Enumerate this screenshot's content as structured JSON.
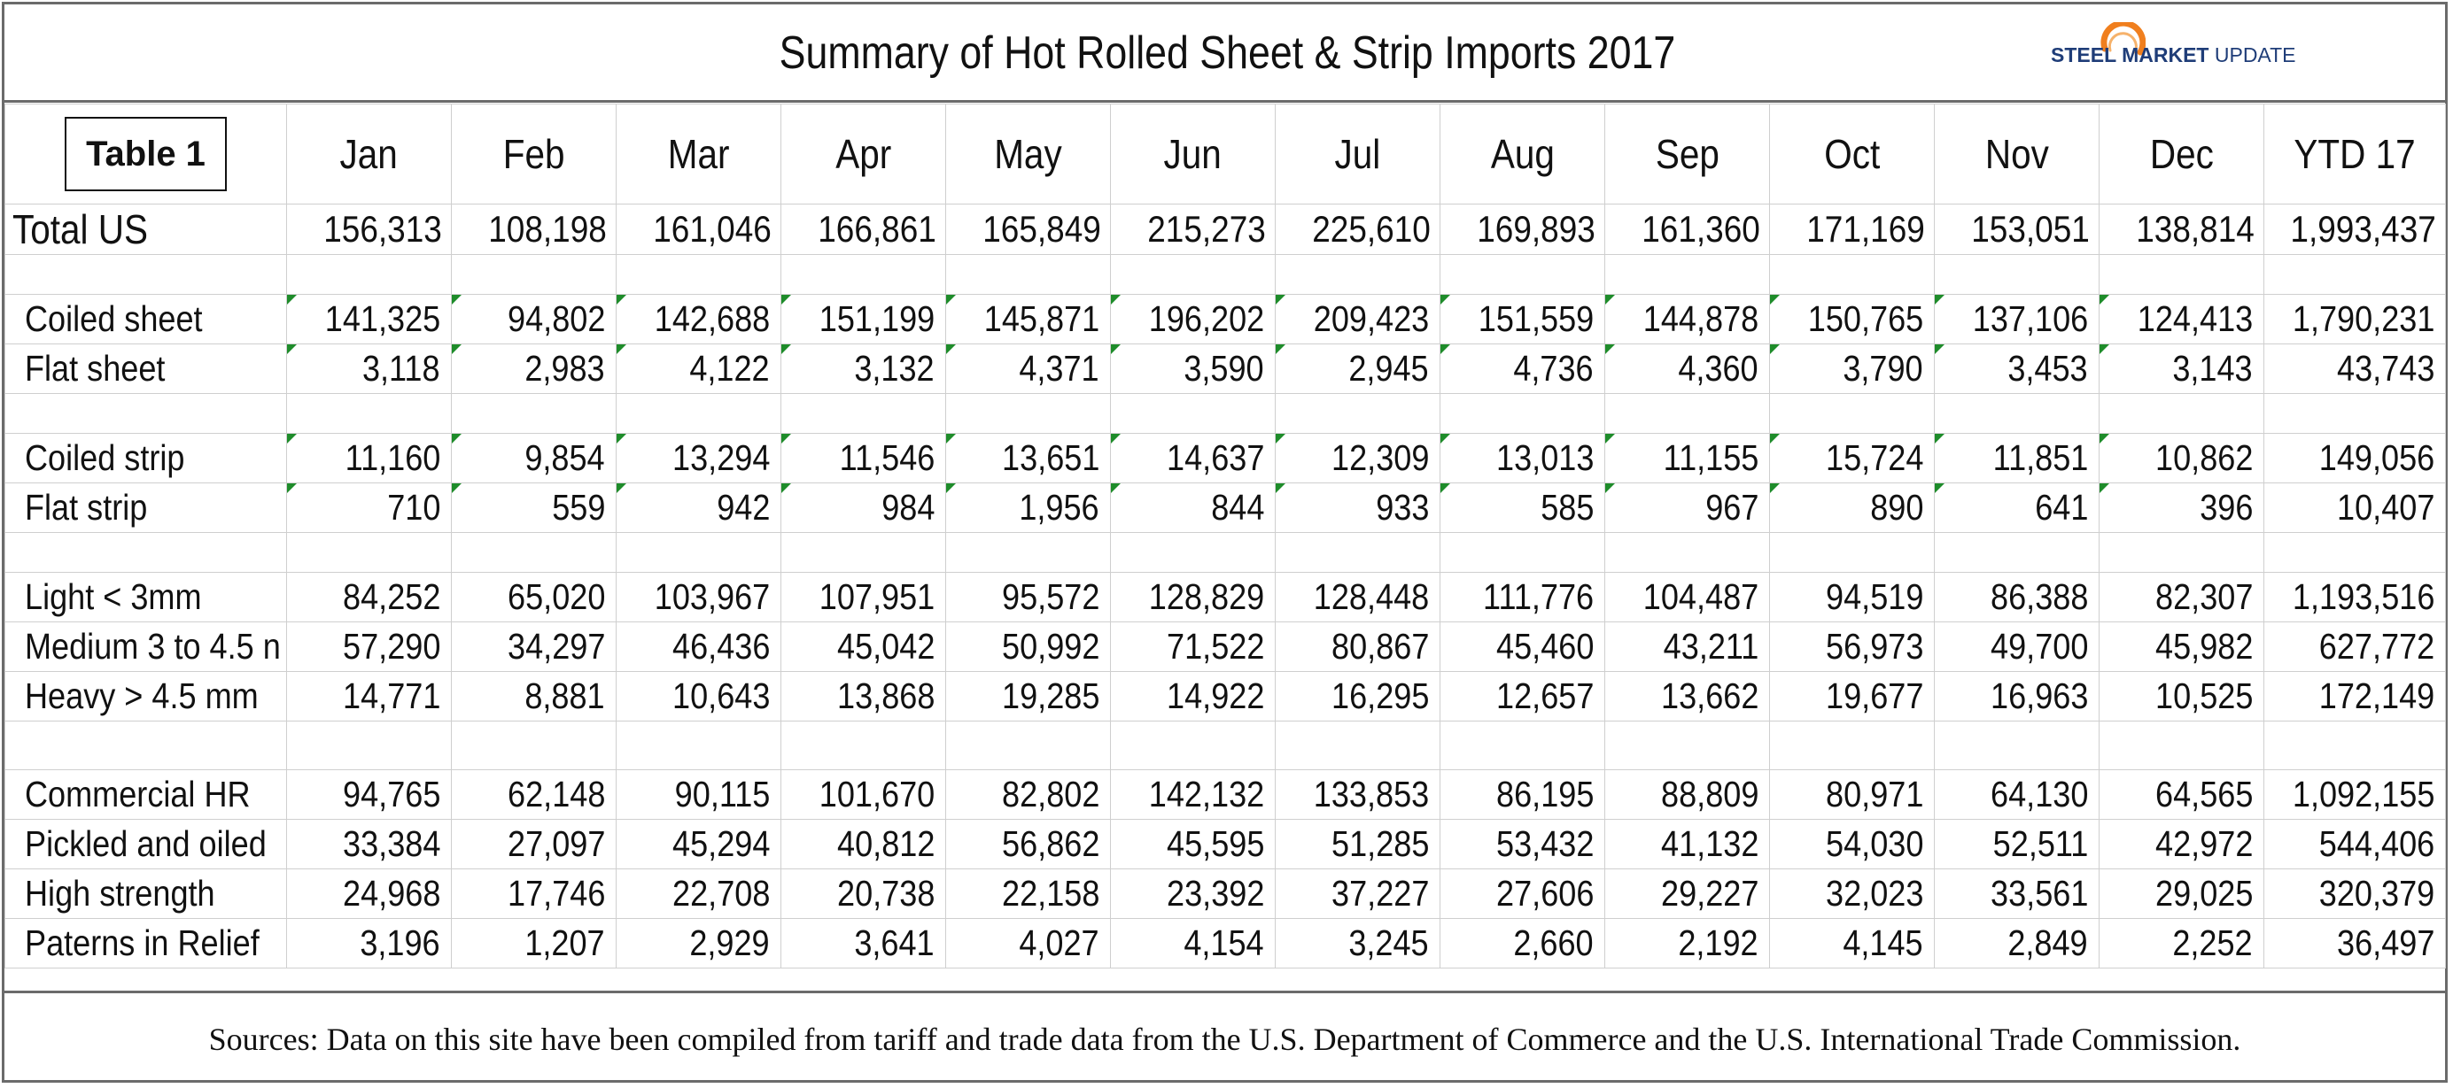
{
  "title": "Summary of Hot Rolled Sheet & Strip Imports 2017",
  "logo": {
    "bold": "STEEL MARKET",
    "light": " UPDATE",
    "icon": "orange-arc-icon"
  },
  "table_label": "Table 1",
  "columns": [
    "Jan",
    "Feb",
    "Mar",
    "Apr",
    "May",
    "Jun",
    "Jul",
    "Aug",
    "Sep",
    "Oct",
    "Nov",
    "Dec",
    "YTD 17"
  ],
  "total": {
    "label": "Total US",
    "values": [
      "156,313",
      "108,198",
      "161,046",
      "166,861",
      "165,849",
      "215,273",
      "225,610",
      "169,893",
      "161,360",
      "171,169",
      "153,051",
      "138,814",
      "1,993,437"
    ]
  },
  "groups": [
    {
      "rows": [
        {
          "label": "Coiled sheet",
          "values": [
            "141,325",
            "94,802",
            "142,688",
            "151,199",
            "145,871",
            "196,202",
            "209,423",
            "151,559",
            "144,878",
            "150,765",
            "137,106",
            "124,413",
            "1,790,231"
          ]
        },
        {
          "label": "Flat sheet",
          "values": [
            "3,118",
            "2,983",
            "4,122",
            "3,132",
            "4,371",
            "3,590",
            "2,945",
            "4,736",
            "4,360",
            "3,790",
            "3,453",
            "3,143",
            "43,743"
          ]
        }
      ]
    },
    {
      "rows": [
        {
          "label": "Coiled strip",
          "values": [
            "11,160",
            "9,854",
            "13,294",
            "11,546",
            "13,651",
            "14,637",
            "12,309",
            "13,013",
            "11,155",
            "15,724",
            "11,851",
            "10,862",
            "149,056"
          ]
        },
        {
          "label": "Flat strip",
          "values": [
            "710",
            "559",
            "942",
            "984",
            "1,956",
            "844",
            "933",
            "585",
            "967",
            "890",
            "641",
            "396",
            "10,407"
          ]
        }
      ]
    },
    {
      "rows": [
        {
          "label": "Light < 3mm",
          "values": [
            "84,252",
            "65,020",
            "103,967",
            "107,951",
            "95,572",
            "128,829",
            "128,448",
            "111,776",
            "104,487",
            "94,519",
            "86,388",
            "82,307",
            "1,193,516"
          ]
        },
        {
          "label": "Medium 3 to 4.5 n",
          "values": [
            "57,290",
            "34,297",
            "46,436",
            "45,042",
            "50,992",
            "71,522",
            "80,867",
            "45,460",
            "43,211",
            "56,973",
            "49,700",
            "45,982",
            "627,772"
          ]
        },
        {
          "label": "Heavy > 4.5 mm",
          "values": [
            "14,771",
            "8,881",
            "10,643",
            "13,868",
            "19,285",
            "14,922",
            "16,295",
            "12,657",
            "13,662",
            "19,677",
            "16,963",
            "10,525",
            "172,149"
          ]
        }
      ]
    },
    {
      "rows": [
        {
          "label": "Commercial HR",
          "values": [
            "94,765",
            "62,148",
            "90,115",
            "101,670",
            "82,802",
            "142,132",
            "133,853",
            "86,195",
            "88,809",
            "80,971",
            "64,130",
            "64,565",
            "1,092,155"
          ]
        },
        {
          "label": "Pickled and oiled",
          "values": [
            "33,384",
            "27,097",
            "45,294",
            "40,812",
            "56,862",
            "45,595",
            "51,285",
            "53,432",
            "41,132",
            "54,030",
            "52,511",
            "42,972",
            "544,406"
          ]
        },
        {
          "label": "High strength",
          "values": [
            "24,968",
            "17,746",
            "22,708",
            "20,738",
            "22,158",
            "23,392",
            "37,227",
            "27,606",
            "29,227",
            "32,023",
            "33,561",
            "29,025",
            "320,379"
          ]
        },
        {
          "label": "Paterns in Relief",
          "values": [
            "3,196",
            "1,207",
            "2,929",
            "3,641",
            "4,027",
            "4,154",
            "3,245",
            "2,660",
            "2,192",
            "4,145",
            "2,849",
            "2,252",
            "36,497"
          ]
        }
      ]
    }
  ],
  "source": "Sources: Data on this site have been compiled from tariff and trade data from the U.S. Department of Commerce and the U.S. International Trade Commission.",
  "colors": {
    "border": "#6b6b6b",
    "gridline": "#cfcfcf",
    "cell_marker": "#1e8c2a",
    "logo_blue": "#1f3d78",
    "logo_orange": "#f07f1e"
  }
}
